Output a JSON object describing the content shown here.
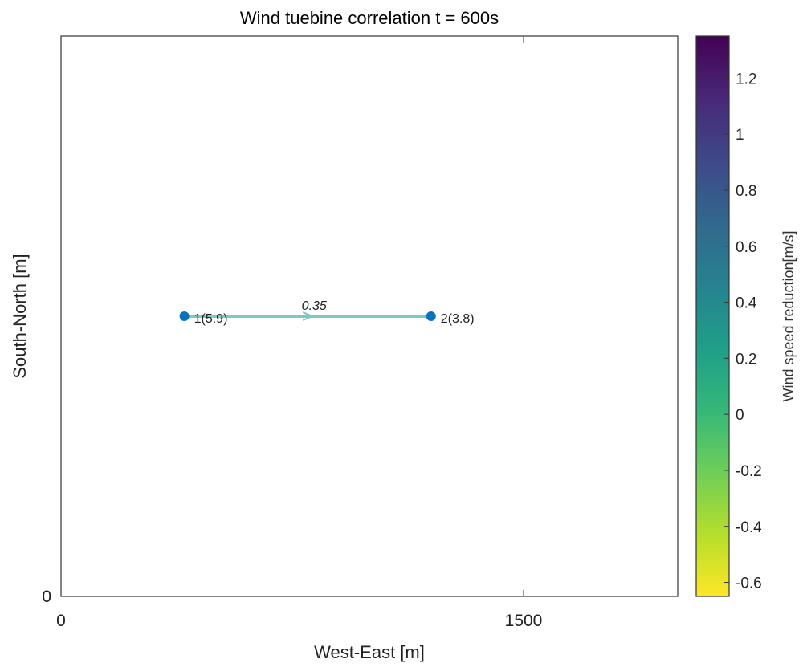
{
  "chart_data": {
    "type": "graph",
    "title": "Wind tuebine correlation t = 600s",
    "xlabel": "West-East [m]",
    "ylabel": "South-North [m]",
    "xlim": [
      0,
      2000
    ],
    "ylim": [
      0,
      1000
    ],
    "xticks": [
      0,
      1500
    ],
    "xtick_labels": [
      "0",
      "1500"
    ],
    "yticks": [
      0
    ],
    "ytick_labels": [
      "0"
    ],
    "grid": false,
    "nodes": [
      {
        "id": 1,
        "label": "1(5.9)",
        "x": 400,
        "y": 500,
        "color": "#0a72bd"
      },
      {
        "id": 2,
        "label": "2(3.8)",
        "x": 1200,
        "y": 500,
        "color": "#0a72bd"
      }
    ],
    "edges": [
      {
        "from": 1,
        "to": 2,
        "weight_label": "0.35",
        "value": 0.35,
        "color": "#7fc8c8"
      }
    ],
    "colorbar": {
      "label": "Wind speed reduction[m/s]",
      "colormap": "viridis",
      "range": [
        -0.65,
        1.35
      ],
      "ticks": [
        1.2,
        1,
        0.8,
        0.6,
        0.4,
        0.2,
        0,
        -0.2,
        -0.4,
        -0.6
      ],
      "tick_labels": [
        "1.2",
        "1",
        "0.8",
        "0.6",
        "0.4",
        "0.2",
        "0",
        "-0.2",
        "-0.4",
        "-0.6"
      ],
      "colors": [
        "#fde725",
        "#b5de2b",
        "#6ece58",
        "#35b779",
        "#1f9e89",
        "#26828e",
        "#31688e",
        "#3e4989",
        "#482878",
        "#440154"
      ]
    }
  }
}
